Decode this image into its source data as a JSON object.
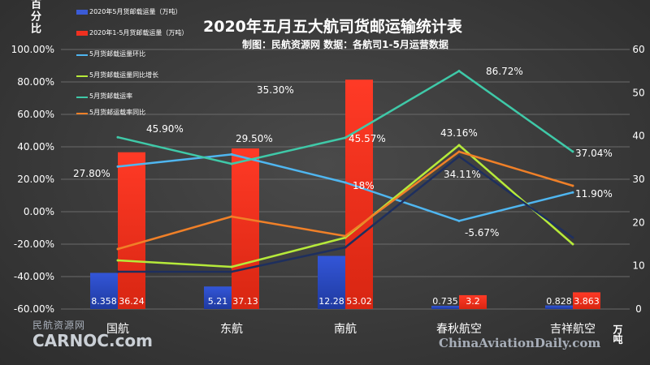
{
  "header": {
    "title": "2020年五月五大航司货邮运输统计表",
    "subtitle": "制图：民航资源网 数据：各航司1-5月运营数据"
  },
  "axis_labels": {
    "left": "百分比",
    "right": "万吨"
  },
  "legend": [
    {
      "label": "2020年5月货邮载运量（万吨）",
      "kind": "bar",
      "color": "#3b5bd6"
    },
    {
      "label": "2020年1-5月货邮载运量（万吨）",
      "kind": "bar",
      "color": "#f03020"
    },
    {
      "label": "5月货邮载运量环比",
      "kind": "line",
      "color": "#4fb6f0"
    },
    {
      "label": "5月货邮载运量同比增长",
      "kind": "line",
      "color": "#b6ea3a"
    },
    {
      "label": "5月货邮载运率",
      "kind": "line",
      "color": "#3fc9a8"
    },
    {
      "label": "5月货邮运载率同比",
      "kind": "line",
      "color": "#f08028"
    }
  ],
  "watermarks": {
    "left_cn": "民航资源网",
    "left_en": "CARNOC.com",
    "right": "ChinaAviationDaily.com"
  },
  "chart_data": {
    "type": "bar",
    "categories": [
      "国航",
      "东航",
      "南航",
      "春秋航空",
      "吉祥航空"
    ],
    "y_left_ticks": [
      "100.00%",
      "80.00%",
      "60.00%",
      "40.00%",
      "20.00%",
      "0.00%",
      "-20.00%",
      "-40.00%",
      "-60.00%"
    ],
    "y_left_lim": [
      -60,
      100
    ],
    "y_right_ticks": [
      "60",
      "50",
      "40",
      "30",
      "20",
      "10",
      "0"
    ],
    "y_right_lim": [
      0,
      60
    ],
    "bar_series": [
      {
        "name": "2020年5月货邮载运量（万吨）",
        "axis": "right",
        "color": "#3b5bd6",
        "values": [
          8.358,
          5.21,
          12.28,
          0.735,
          0.828
        ],
        "labels": [
          "8.358",
          "5.21",
          "12.28",
          "0.735",
          "0.828"
        ]
      },
      {
        "name": "2020年1-5月货邮载运量（万吨）",
        "axis": "right",
        "color": "#f03020",
        "values": [
          36.24,
          37.13,
          53.02,
          3.2,
          3.863
        ],
        "labels": [
          "36.24",
          "37.13",
          "53.02",
          "3.2",
          "3.863"
        ]
      }
    ],
    "line_series": [
      {
        "name": "5月货邮载运量环比",
        "color": "#4fb6f0",
        "values": [
          27.8,
          35.3,
          18,
          -5.67,
          11.9
        ],
        "labels": [
          "27.80%",
          "35.30%",
          "18%",
          "-5.67%",
          "11.90%"
        ]
      },
      {
        "name": "5月货邮载运量同比增长",
        "color": "#b6ea3a",
        "values": [
          -30,
          -34,
          -16,
          41,
          -20
        ],
        "labels": []
      },
      {
        "name": "5月货邮载运率",
        "color": "#3fc9a8",
        "values": [
          45.9,
          29.5,
          45.57,
          86.72,
          37.04
        ],
        "labels": [
          "45.90%",
          "29.50%",
          "45.57%",
          "86.72%",
          "37.04%"
        ]
      },
      {
        "name": "5月货邮运载率同比",
        "color": "#f08028",
        "values": [
          -23,
          -3,
          -15,
          37,
          16
        ],
        "labels": []
      },
      {
        "name": "hidden-dark-line",
        "color": "#1e2f5e",
        "values": [
          -37,
          -37,
          -22,
          34.11,
          -16
        ],
        "labels": [
          "",
          "",
          "",
          "34.11%",
          ""
        ]
      }
    ],
    "extra_labels": [
      "43.16%"
    ]
  }
}
